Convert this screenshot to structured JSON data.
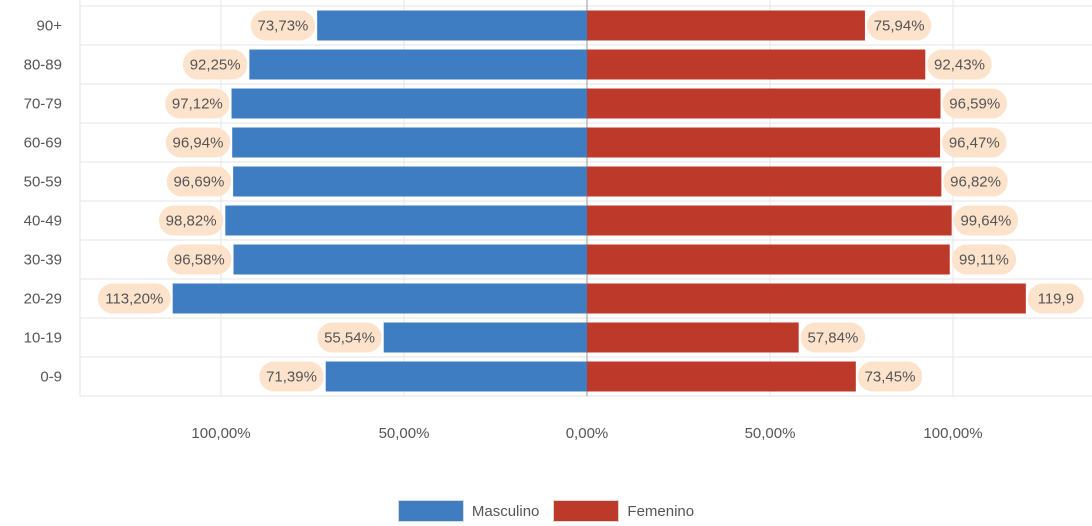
{
  "chart_data": {
    "type": "bar",
    "orientation": "horizontal-diverging",
    "categories": [
      "90+",
      "80-89",
      "70-79",
      "60-69",
      "50-59",
      "40-49",
      "30-39",
      "20-29",
      "10-19",
      "0-9"
    ],
    "series": [
      {
        "name": "Masculino",
        "color": "#3f7dc2",
        "side": "left",
        "values": [
          73.73,
          92.25,
          97.12,
          96.94,
          96.69,
          98.82,
          96.58,
          113.2,
          55.54,
          71.39
        ],
        "labels": [
          "73,73%",
          "92,25%",
          "97,12%",
          "96,94%",
          "96,69%",
          "98,82%",
          "96,58%",
          "113,20%",
          "55,54%",
          "71,39%"
        ]
      },
      {
        "name": "Femenino",
        "color": "#bd3a2b",
        "side": "right",
        "values": [
          75.94,
          92.43,
          96.59,
          96.47,
          96.82,
          99.64,
          99.11,
          119.9,
          57.84,
          73.45
        ],
        "labels": [
          "75,94%",
          "92,43%",
          "96,59%",
          "96,47%",
          "96,82%",
          "99,64%",
          "99,11%",
          "119,9",
          "57,84%",
          "73,45%"
        ]
      }
    ],
    "x_ticks": [
      {
        "value": -100,
        "label": "100,00%"
      },
      {
        "value": -50,
        "label": "50,00%"
      },
      {
        "value": 0,
        "label": "0,00%"
      },
      {
        "value": 50,
        "label": "50,00%"
      },
      {
        "value": 100,
        "label": "100,00%"
      }
    ],
    "xlim": [
      -138.5,
      138.5
    ],
    "grid": true,
    "label_bubble_color": "#fde3cc",
    "legend": {
      "position": "bottom-center",
      "items": [
        "Masculino",
        "Femenino"
      ]
    }
  }
}
